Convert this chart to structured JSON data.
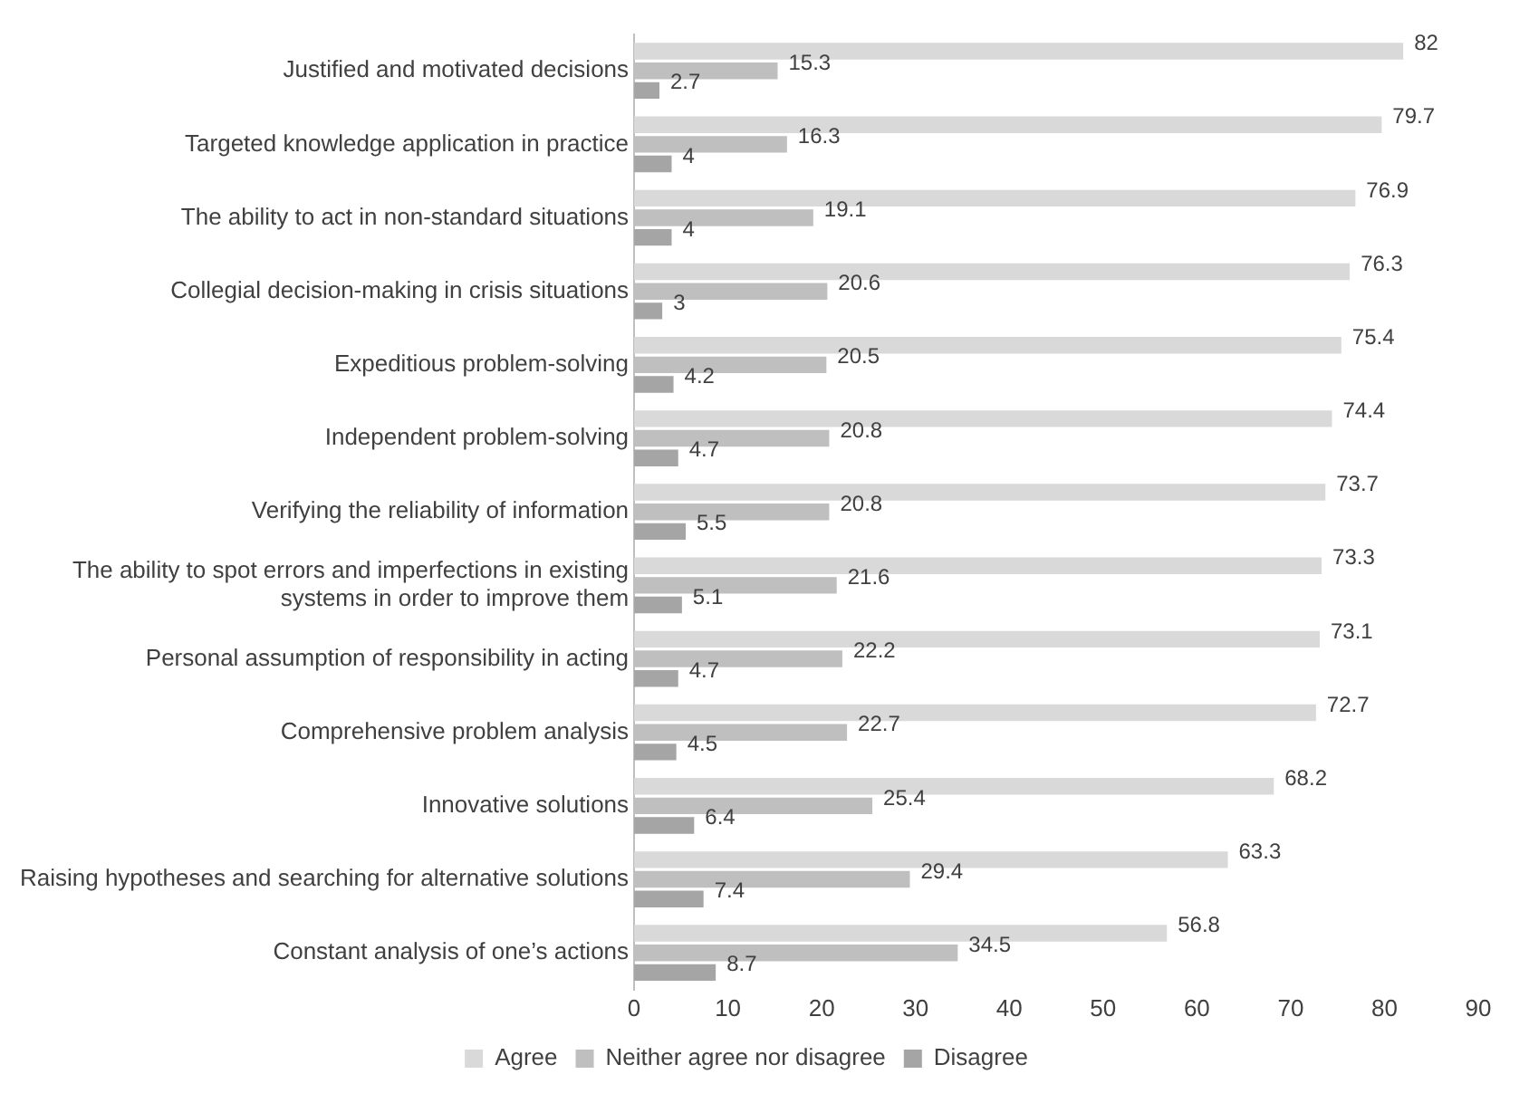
{
  "chart_data": {
    "type": "bar",
    "orientation": "horizontal",
    "categories": [
      "Justified and motivated decisions",
      "Targeted knowledge application in practice",
      "The ability to act in non-standard situations",
      "Collegial decision-making in crisis situations",
      "Expeditious problem-solving",
      "Independent problem-solving",
      "Verifying the reliability of information",
      "The ability to spot errors and imperfections in existing systems in order to improve them",
      "Personal assumption of responsibility in acting",
      "Comprehensive problem analysis",
      "Innovative solutions",
      "Raising hypotheses and searching for alternative solutions",
      "Constant analysis of one’s actions"
    ],
    "series": [
      {
        "name": "Agree",
        "color": "#d9d9d9",
        "values": [
          82,
          79.7,
          76.9,
          76.3,
          75.4,
          74.4,
          73.7,
          73.3,
          73.1,
          72.7,
          68.2,
          63.3,
          56.8
        ]
      },
      {
        "name": "Neither agree nor disagree",
        "color": "#bfbfbf",
        "values": [
          15.3,
          16.3,
          19.1,
          20.6,
          20.5,
          20.8,
          20.8,
          21.6,
          22.2,
          22.7,
          25.4,
          29.4,
          34.5
        ]
      },
      {
        "name": "Disagree",
        "color": "#a5a5a5",
        "values": [
          2.7,
          4,
          4,
          3,
          4.2,
          4.7,
          5.5,
          5.1,
          4.7,
          4.5,
          6.4,
          7.4,
          8.7
        ]
      }
    ],
    "xlim": [
      0,
      90
    ],
    "xticks": [
      0,
      10,
      20,
      30,
      40,
      50,
      60,
      70,
      80,
      90
    ],
    "data_labels": true,
    "legend": "bottom"
  }
}
